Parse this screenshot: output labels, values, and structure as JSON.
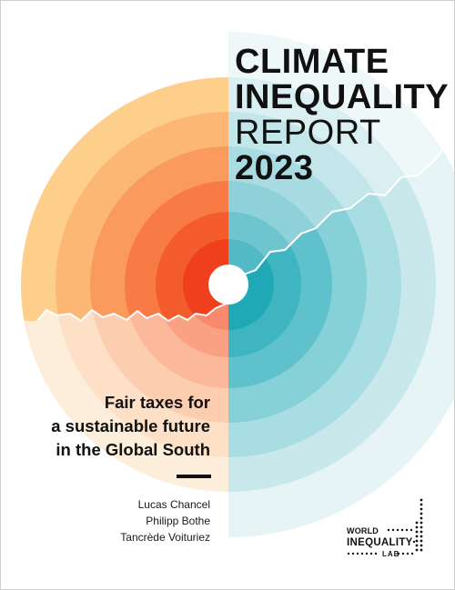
{
  "title": {
    "line1": "CLIMATE",
    "line2": "INEQUALITY",
    "line3": "REPORT",
    "line4": "2023"
  },
  "subtitle": {
    "line1": "Fair taxes for",
    "line2": "a sustainable future",
    "line3": "in the Global South"
  },
  "authors": [
    "Lucas Chancel",
    "Philipp Bothe",
    "Tancrède Voituriez"
  ],
  "logo": {
    "line1": "WORLD",
    "line2": "INEQUALITY",
    "line3": "LAB",
    "icon": "dot-staircase-icon"
  },
  "colors": {
    "warm_rings": [
      "#fdcf8a",
      "#fcb774",
      "#fb9a5d",
      "#f87b45",
      "#f45c2e",
      "#ef3f1c"
    ],
    "cool_rings": [
      "#e6f4f6",
      "#c8e8ec",
      "#a8dde3",
      "#86d0d8",
      "#5fc1cb",
      "#33b1bd"
    ],
    "text": "#111111"
  }
}
